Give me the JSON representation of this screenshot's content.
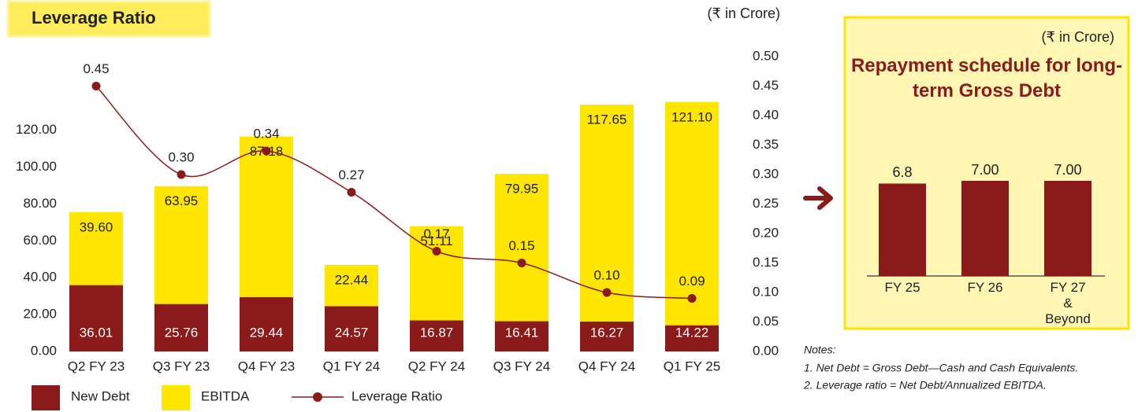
{
  "chart_data": [
    {
      "type": "bar",
      "stacked": true,
      "title": "Leverage Ratio",
      "unit": "(₹ in Crore)",
      "categories": [
        "Q2 FY 23",
        "Q3 FY 23",
        "Q4 FY 23",
        "Q1 FY 24",
        "Q2 FY 24",
        "Q3 FY 24",
        "Q4 FY 24",
        "Q1 FY 25"
      ],
      "series": [
        {
          "name": "New Debt",
          "color": "#8b1a1a",
          "values": [
            36.01,
            25.76,
            29.44,
            24.57,
            16.87,
            16.41,
            16.27,
            14.22
          ],
          "value_labels": [
            "36.01",
            "25.76",
            "29.44",
            "24.57",
            "16.87",
            "16.41",
            "16.27",
            "14.22"
          ]
        },
        {
          "name": "EBITDA",
          "color": "#ffe600",
          "values": [
            39.6,
            63.95,
            87.18,
            22.44,
            51.11,
            79.95,
            117.65,
            121.1
          ],
          "value_labels": [
            "39.60",
            "63.95",
            "87.18",
            "22.44",
            "51.11",
            "79.95",
            "117.65",
            "121.10"
          ]
        },
        {
          "name": "Leverage Ratio",
          "color": "#8b1a1a",
          "type": "line",
          "axis": "y2",
          "values": [
            0.45,
            0.3,
            0.34,
            0.27,
            0.17,
            0.15,
            0.1,
            0.09
          ],
          "value_labels": [
            "0.45",
            "0.30",
            "0.34",
            "0.27",
            "0.17",
            "0.15",
            "0.10",
            "0.09"
          ]
        }
      ],
      "ylim": [
        0,
        160
      ],
      "yticks": [
        {
          "value": 0,
          "label": "0.00"
        },
        {
          "value": 20,
          "label": "20.00"
        },
        {
          "value": 40,
          "label": "40.00"
        },
        {
          "value": 60,
          "label": "60.00"
        },
        {
          "value": 80,
          "label": "80.00"
        },
        {
          "value": 100,
          "label": "100.00"
        },
        {
          "value": 120,
          "label": "120.00"
        }
      ],
      "y2lim": [
        0,
        0.5
      ],
      "y2ticks": [
        {
          "value": 0,
          "label": "0.00"
        },
        {
          "value": 0.05,
          "label": "0.05"
        },
        {
          "value": 0.1,
          "label": "0.10"
        },
        {
          "value": 0.15,
          "label": "0.15"
        },
        {
          "value": 0.2,
          "label": "0.20"
        },
        {
          "value": 0.25,
          "label": "0.25"
        },
        {
          "value": 0.3,
          "label": "0.30"
        },
        {
          "value": 0.35,
          "label": "0.35"
        },
        {
          "value": 0.4,
          "label": "0.40"
        },
        {
          "value": 0.45,
          "label": "0.45"
        },
        {
          "value": 0.5,
          "label": "0.50"
        }
      ],
      "legend": "bottom"
    },
    {
      "type": "bar",
      "title": "Repayment schedule for long-term Gross Debt",
      "unit": "(₹ in Crore)",
      "categories": [
        "FY 25",
        "FY 26",
        "FY 27 & Beyond"
      ],
      "values": [
        6.8,
        7.0,
        7.0
      ],
      "value_labels": [
        "6.8",
        "7.00",
        "7.00"
      ],
      "color": "#8b1a1a"
    }
  ],
  "notes": {
    "heading": "Notes:",
    "items": [
      "1. Net Debt = Gross Debt—Cash and Cash Equivalents.",
      "2. Leverage ratio = Net Debt/Annualized EBITDA."
    ]
  }
}
